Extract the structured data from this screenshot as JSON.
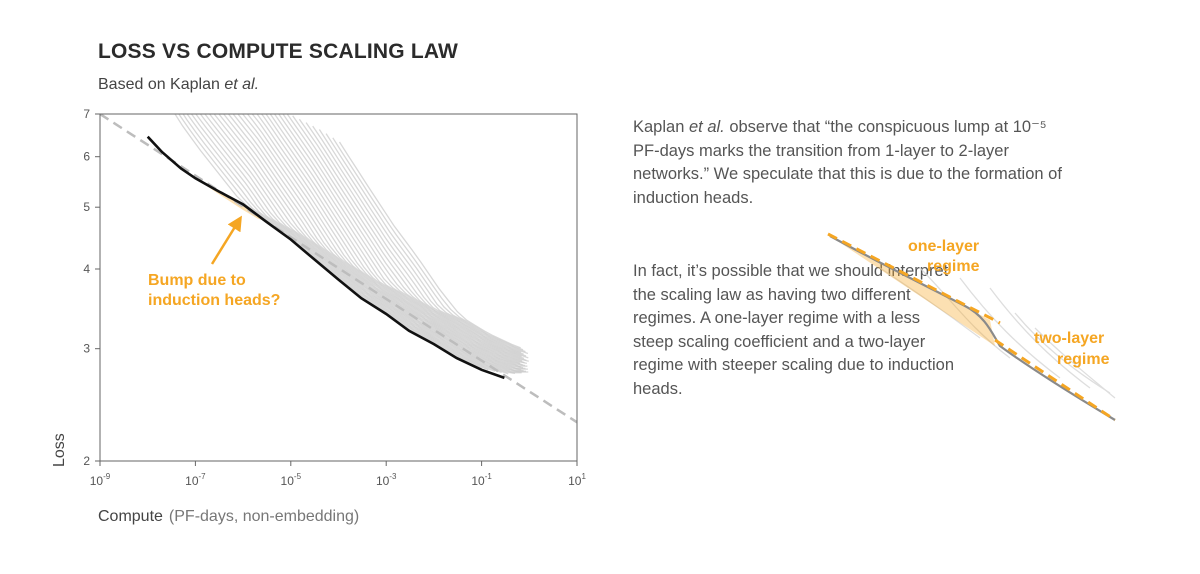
{
  "title": "LOSS VS COMPUTE SCALING LAW",
  "subtitle_prefix": "Based on Kaplan ",
  "subtitle_em": "et al.",
  "paragraph_1": {
    "pre": "Kaplan ",
    "em": "et al.",
    "post": " observe that “the conspicuous lump at 10⁻⁵ PF-days marks the transition from 1-layer to 2-layer networks.” We speculate that this is due to the formation of induction heads."
  },
  "paragraph_2": "In fact, it’s possible that we should interpret the scaling law as having two different regimes. A one-layer regime with a less steep scaling coefficient and a two-layer regime with steeper scaling due to induction heads.",
  "annotation": {
    "line1": "Bump due to",
    "line2": "induction heads?"
  },
  "inset": {
    "label_one_1": "one-layer",
    "label_one_2": "regime",
    "label_two_1": "two-layer",
    "label_two_2": "regime"
  },
  "colors": {
    "accent": "#f5a623",
    "frontier": "#111111",
    "curves": "#c8c8c8",
    "fit": "#bdbdbd",
    "axis": "#555555"
  },
  "chart_data": {
    "type": "line",
    "xlabel": "Compute",
    "xlabel_sub": "(PF-days, non-embedding)",
    "ylabel": "Loss",
    "x_scale": "log",
    "y_scale": "log",
    "xlim": [
      1e-09,
      10
    ],
    "ylim": [
      2,
      7
    ],
    "x_ticks": [
      {
        "value": 1e-09,
        "base": "10",
        "exp": "-9"
      },
      {
        "value": 1e-07,
        "base": "10",
        "exp": "-7"
      },
      {
        "value": 1e-05,
        "base": "10",
        "exp": "-5"
      },
      {
        "value": 0.001,
        "base": "10",
        "exp": "-3"
      },
      {
        "value": 0.1,
        "base": "10",
        "exp": "-1"
      },
      {
        "value": 10,
        "base": "10",
        "exp": "1"
      }
    ],
    "y_ticks": [
      {
        "value": 2,
        "label": "2"
      },
      {
        "value": 3,
        "label": "3"
      },
      {
        "value": 4,
        "label": "4"
      },
      {
        "value": 5,
        "label": "5"
      },
      {
        "value": 6,
        "label": "6"
      },
      {
        "value": 7,
        "label": "7"
      }
    ],
    "frontier": [
      [
        1e-08,
        6.45
      ],
      [
        2e-08,
        6.1
      ],
      [
        5e-08,
        5.75
      ],
      [
        1e-07,
        5.55
      ],
      [
        3e-07,
        5.3
      ],
      [
        1e-06,
        5.05
      ],
      [
        3e-06,
        4.75
      ],
      [
        1e-05,
        4.45
      ],
      [
        3e-05,
        4.15
      ],
      [
        0.0001,
        3.85
      ],
      [
        0.0003,
        3.6
      ],
      [
        0.001,
        3.4
      ],
      [
        0.003,
        3.2
      ],
      [
        0.01,
        3.05
      ],
      [
        0.03,
        2.9
      ],
      [
        0.1,
        2.78
      ],
      [
        0.3,
        2.7
      ]
    ],
    "fit_line": [
      [
        1e-09,
        7.0
      ],
      [
        10,
        2.3
      ]
    ],
    "bump_region": [
      [
        1e-07,
        5.55
      ],
      [
        3e-07,
        5.25
      ],
      [
        1e-06,
        4.95
      ],
      [
        2e-06,
        4.8
      ],
      [
        3e-06,
        4.75
      ],
      [
        1e-06,
        5.05
      ],
      [
        3e-07,
        5.3
      ]
    ]
  }
}
